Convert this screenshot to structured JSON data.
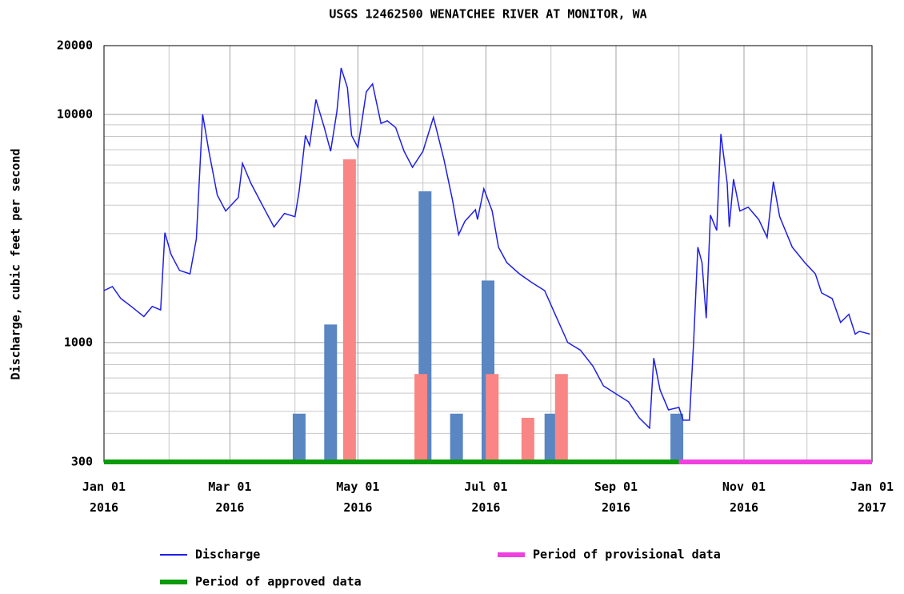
{
  "chart_data": {
    "type": "line",
    "title": "USGS 12462500 WENATCHEE RIVER AT MONITOR, WA",
    "y_label": "Discharge, cubic feet per second",
    "log_y": true,
    "grid": true,
    "xlim": [
      "2016-01-01",
      "2017-01-01"
    ],
    "ylim": [
      300,
      20000
    ],
    "yticks": [
      300,
      1000,
      10000,
      20000
    ],
    "yminorticks": [
      400,
      500,
      600,
      700,
      800,
      900,
      2000,
      3000,
      4000,
      5000,
      6000,
      7000,
      8000,
      9000
    ],
    "xticks": [
      {
        "value": "2016-01-01",
        "label": "Jan 01\n2016"
      },
      {
        "value": "2016-03-01",
        "label": "Mar 01\n2016"
      },
      {
        "value": "2016-05-01",
        "label": "May 01\n2016"
      },
      {
        "value": "2016-07-01",
        "label": "Jul 01\n2016"
      },
      {
        "value": "2016-09-01",
        "label": "Sep 01\n2016"
      },
      {
        "value": "2016-11-01",
        "label": "Nov 01\n2016"
      },
      {
        "value": "2017-01-01",
        "label": "Jan 01\n2017"
      }
    ],
    "xminorticks": [
      "2016-02-01",
      "2016-04-01",
      "2016-06-01",
      "2016-08-01",
      "2016-10-01",
      "2016-12-01"
    ],
    "series": [
      {
        "name": "Discharge",
        "color": "#1f1fe8",
        "x": [
          "2016-01-01",
          "2016-01-05",
          "2016-01-09",
          "2016-01-14",
          "2016-01-20",
          "2016-01-24",
          "2016-01-28",
          "2016-01-30",
          "2016-02-02",
          "2016-02-06",
          "2016-02-11",
          "2016-02-14",
          "2016-02-17",
          "2016-02-20",
          "2016-02-24",
          "2016-02-28",
          "2016-03-05",
          "2016-03-07",
          "2016-03-11",
          "2016-03-17",
          "2016-03-22",
          "2016-03-27",
          "2016-04-01",
          "2016-04-03",
          "2016-04-06",
          "2016-04-08",
          "2016-04-11",
          "2016-04-15",
          "2016-04-18",
          "2016-04-21",
          "2016-04-23",
          "2016-04-26",
          "2016-04-28",
          "2016-05-01",
          "2016-05-05",
          "2016-05-08",
          "2016-05-12",
          "2016-05-15",
          "2016-05-19",
          "2016-05-23",
          "2016-05-27",
          "2016-06-01",
          "2016-06-06",
          "2016-06-11",
          "2016-06-15",
          "2016-06-18",
          "2016-06-21",
          "2016-06-26",
          "2016-06-27",
          "2016-06-30",
          "2016-07-04",
          "2016-07-07",
          "2016-07-11",
          "2016-07-17",
          "2016-07-23",
          "2016-07-29",
          "2016-08-03",
          "2016-08-09",
          "2016-08-15",
          "2016-08-21",
          "2016-08-26",
          "2016-09-01",
          "2016-09-07",
          "2016-09-12",
          "2016-09-17",
          "2016-09-19",
          "2016-09-22",
          "2016-09-26",
          "2016-10-01",
          "2016-10-03",
          "2016-10-06",
          "2016-10-08",
          "2016-10-10",
          "2016-10-12",
          "2016-10-14",
          "2016-10-16",
          "2016-10-19",
          "2016-10-21",
          "2016-10-24",
          "2016-10-25",
          "2016-10-27",
          "2016-10-30",
          "2016-11-03",
          "2016-11-08",
          "2016-11-12",
          "2016-11-15",
          "2016-11-18",
          "2016-11-24",
          "2016-11-30",
          "2016-12-05",
          "2016-12-08",
          "2016-12-13",
          "2016-12-17",
          "2016-12-21",
          "2016-12-24",
          "2016-12-26",
          "2016-12-31"
        ],
        "values": [
          1690,
          1760,
          1560,
          1440,
          1300,
          1440,
          1390,
          3030,
          2430,
          2070,
          2000,
          2840,
          10000,
          6890,
          4430,
          3770,
          4320,
          6100,
          4990,
          3920,
          3210,
          3680,
          3560,
          4600,
          8080,
          7300,
          11600,
          8750,
          6890,
          10280,
          15970,
          13070,
          8080,
          7160,
          12560,
          13600,
          9120,
          9370,
          8750,
          6890,
          5860,
          6890,
          9710,
          6350,
          4250,
          2970,
          3400,
          3820,
          3460,
          4720,
          3770,
          2620,
          2240,
          2000,
          1830,
          1690,
          1330,
          1000,
          927,
          789,
          646,
          596,
          550,
          468,
          422,
          855,
          620,
          507,
          520,
          457,
          457,
          1000,
          2620,
          2240,
          1280,
          3620,
          3100,
          8200,
          4990,
          3210,
          5200,
          3770,
          3920,
          3460,
          2890,
          5070,
          3560,
          2620,
          2240,
          2000,
          1650,
          1560,
          1225,
          1330,
          1090,
          1120,
          1090
        ]
      }
    ],
    "bars": [
      {
        "color": "#5a86c2",
        "x": [
          "2016-04-03",
          "2016-04-18",
          "2016-06-02",
          "2016-06-17",
          "2016-07-02",
          "2016-08-01",
          "2016-09-30"
        ],
        "values": [
          488,
          1200,
          4600,
          488,
          1870,
          488,
          488
        ]
      },
      {
        "color": "#fa8585",
        "x": [
          "2016-04-27",
          "2016-05-31",
          "2016-07-04",
          "2016-07-21",
          "2016-08-06"
        ],
        "values": [
          6350,
          728,
          728,
          468,
          728
        ]
      }
    ],
    "periods": [
      {
        "name": "Period of approved data",
        "color": "#0a9a0a",
        "range": [
          "2016-01-01",
          "2016-10-01"
        ]
      },
      {
        "name": "Period of provisional data",
        "color": "#f040e0",
        "range": [
          "2016-10-01",
          "2017-01-01"
        ]
      }
    ]
  }
}
